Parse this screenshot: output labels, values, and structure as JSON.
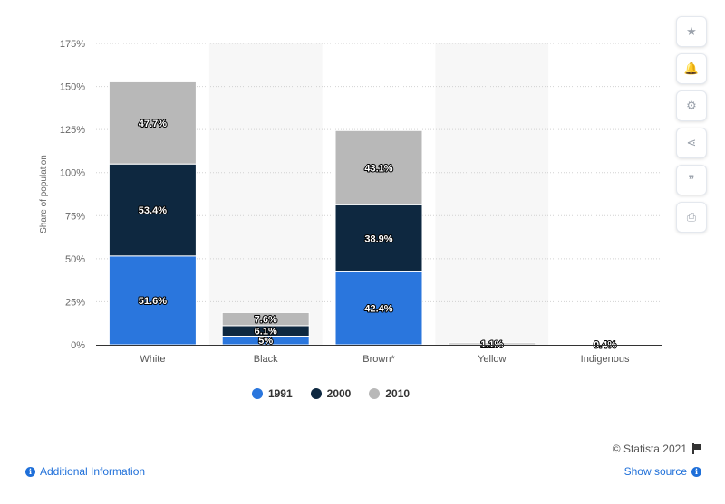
{
  "chart_data": {
    "type": "bar",
    "stacked": true,
    "categories": [
      "White",
      "Black",
      "Brown*",
      "Yellow",
      "Indigenous"
    ],
    "series": [
      {
        "name": "1991",
        "color": "#2a76dd",
        "values": [
          51.6,
          5,
          42.4,
          0,
          0
        ],
        "labels": [
          "51.6%",
          "5%",
          "42.4%",
          "",
          ""
        ]
      },
      {
        "name": "2000",
        "color": "#0e2840",
        "values": [
          53.4,
          6.1,
          38.9,
          0,
          0
        ],
        "labels": [
          "53.4%",
          "6.1%",
          "38.9%",
          "",
          ""
        ]
      },
      {
        "name": "2010",
        "color": "#b8b8b8",
        "values": [
          47.7,
          7.6,
          43.1,
          1.1,
          0.4
        ],
        "labels": [
          "47.7%",
          "7.6%",
          "43.1%",
          "1.1%",
          "0.4%"
        ]
      }
    ],
    "ylabel": "Share of population",
    "ylim": [
      0,
      175
    ],
    "yticks": [
      0,
      25,
      50,
      75,
      100,
      125,
      150,
      175
    ],
    "ytick_labels": [
      "0%",
      "25%",
      "50%",
      "75%",
      "100%",
      "125%",
      "150%",
      "175%"
    ],
    "grid": true,
    "legend_position": "bottom"
  },
  "legend": [
    {
      "label": "1991",
      "color": "#2a76dd"
    },
    {
      "label": "2000",
      "color": "#0e2840"
    },
    {
      "label": "2010",
      "color": "#b8b8b8"
    }
  ],
  "toolbar": {
    "star": "★",
    "bell": "🔔",
    "gear": "⚙",
    "share": "⋖",
    "quote": "❞",
    "print": "⎙"
  },
  "footer": {
    "credits": "© Statista 2021",
    "additional_info": "Additional Information",
    "show_source": "Show source"
  }
}
